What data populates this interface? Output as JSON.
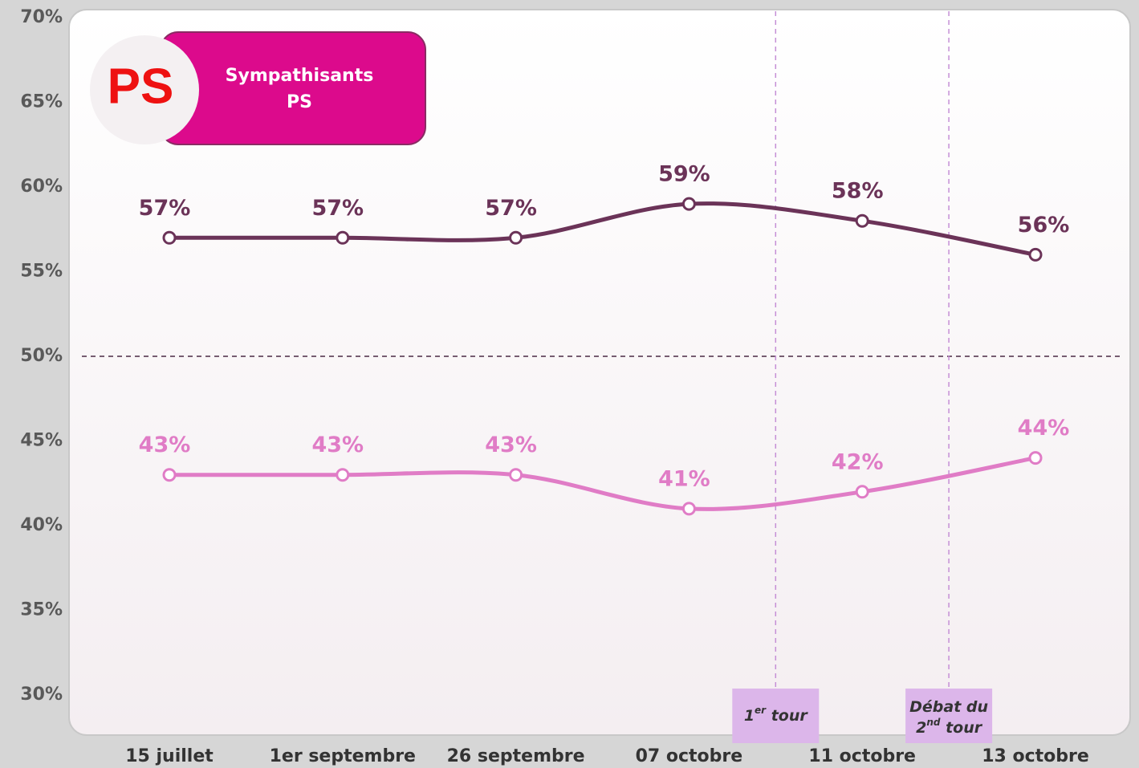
{
  "chart_data": {
    "type": "line",
    "categories": [
      "15 juillet",
      "1er septembre",
      "26 septembre",
      "07 octobre",
      "11 octobre",
      "13 octobre"
    ],
    "series": [
      {
        "color": "#6b3358",
        "values": [
          57,
          57,
          57,
          59,
          58,
          56
        ],
        "value_labels": [
          "57%",
          "57%",
          "57%",
          "59%",
          "58%",
          "56%"
        ]
      },
      {
        "color": "#e07cc6",
        "values": [
          43,
          43,
          43,
          41,
          42,
          44
        ],
        "value_labels": [
          "43%",
          "43%",
          "43%",
          "41%",
          "42%",
          "44%"
        ]
      }
    ],
    "ylim": [
      30,
      70
    ],
    "yticks": [
      {
        "value": 30,
        "label": "30%"
      },
      {
        "value": 35,
        "label": "35%"
      },
      {
        "value": 40,
        "label": "40%"
      },
      {
        "value": 45,
        "label": "45%"
      },
      {
        "value": 50,
        "label": "50%"
      },
      {
        "value": 55,
        "label": "55%"
      },
      {
        "value": 60,
        "label": "60%"
      },
      {
        "value": 65,
        "label": "65%"
      },
      {
        "value": 70,
        "label": "70%"
      }
    ],
    "reference_line": 50,
    "badge": {
      "logo": "PS",
      "lines": [
        "Sympathisants",
        "PS"
      ]
    },
    "annotations": [
      {
        "parts": [
          "1",
          "er",
          " tour"
        ]
      },
      {
        "parts": [
          "Débat du",
          "2",
          "nd",
          " tour"
        ]
      }
    ]
  }
}
